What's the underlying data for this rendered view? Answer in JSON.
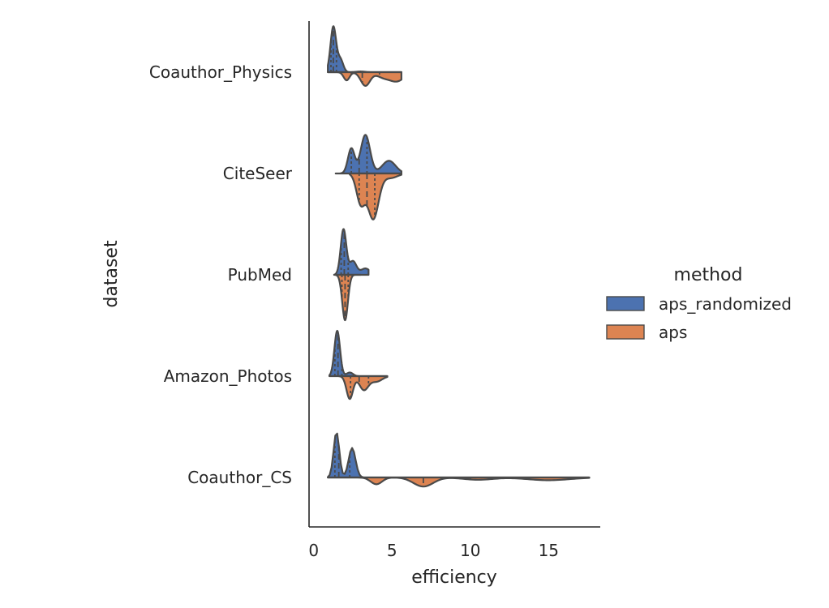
{
  "chart_data": {
    "type": "violin",
    "split": true,
    "inner": "quartile",
    "orientation": "horizontal",
    "xlabel": "efficiency",
    "ylabel": "dataset",
    "xlim": [
      -0.3,
      18.3
    ],
    "xticks": [
      0,
      5,
      10,
      15
    ],
    "categories": [
      "Coauthor_Physics",
      "CiteSeer",
      "PubMed",
      "Amazon_Photos",
      "Coauthor_CS"
    ],
    "legend": {
      "title": "method",
      "position": "right"
    },
    "series": [
      {
        "name": "aps_randomized",
        "color": "#4c72b0",
        "side": "upper",
        "distributions": [
          {
            "range": [
              0.9,
              5.6
            ],
            "peaks": [
              [
                1.25,
                1.0
              ],
              [
                1.7,
                0.28
              ],
              [
                3.0,
                0.015
              ]
            ],
            "quartiles": [
              1.1,
              1.25,
              1.45
            ]
          },
          {
            "range": [
              1.4,
              5.6
            ],
            "peaks": [
              [
                2.4,
                0.55
              ],
              [
                3.3,
                0.85
              ],
              [
                4.8,
                0.28
              ]
            ],
            "quartiles": [
              2.4,
              2.9,
              3.4
            ]
          },
          {
            "range": [
              1.3,
              3.5
            ],
            "peaks": [
              [
                1.9,
                1.0
              ],
              [
                2.5,
                0.3
              ],
              [
                3.3,
                0.14
              ]
            ],
            "quartiles": [
              1.75,
              1.95,
              2.2
            ]
          },
          {
            "range": [
              1.0,
              4.7
            ],
            "peaks": [
              [
                1.5,
                1.0
              ],
              [
                2.3,
                0.08
              ]
            ],
            "quartiles": [
              1.35,
              1.55,
              1.8
            ]
          },
          {
            "range": [
              0.9,
              17.6
            ],
            "peaks": [
              [
                1.45,
                1.0
              ],
              [
                2.45,
                0.65
              ]
            ],
            "quartiles": [
              1.35,
              1.6,
              2.3
            ]
          }
        ]
      },
      {
        "name": "aps",
        "color": "#dd8452",
        "side": "lower",
        "distributions": [
          {
            "range": [
              0.9,
              5.6
            ],
            "peaks": [
              [
                2.1,
                0.18
              ],
              [
                3.3,
                0.3
              ],
              [
                4.4,
                0.1
              ],
              [
                5.3,
                0.2
              ]
            ],
            "quartiles": [
              2.4,
              3.1,
              4.2
            ]
          },
          {
            "range": [
              2.3,
              5.6
            ],
            "peaks": [
              [
                3.0,
                0.65
              ],
              [
                3.8,
                1.0
              ],
              [
                4.9,
                0.1
              ]
            ],
            "quartiles": [
              2.9,
              3.4,
              3.9
            ]
          },
          {
            "range": [
              1.4,
              3.0
            ],
            "peaks": [
              [
                2.0,
                1.0
              ]
            ],
            "quartiles": [
              1.8,
              2.0,
              2.2
            ]
          },
          {
            "range": [
              1.6,
              4.7
            ],
            "peaks": [
              [
                2.3,
                0.5
              ],
              [
                3.2,
                0.3
              ],
              [
                4.0,
                0.12
              ]
            ],
            "quartiles": [
              2.35,
              2.9,
              3.5
            ]
          },
          {
            "range": [
              0.9,
              17.6
            ],
            "peaks": [
              [
                4.0,
                0.15
              ],
              [
                7.0,
                0.2
              ],
              [
                10.5,
                0.05
              ],
              [
                15.0,
                0.06
              ]
            ],
            "quartiles": [
              5.0,
              7.0,
              10.0
            ]
          }
        ]
      }
    ]
  }
}
